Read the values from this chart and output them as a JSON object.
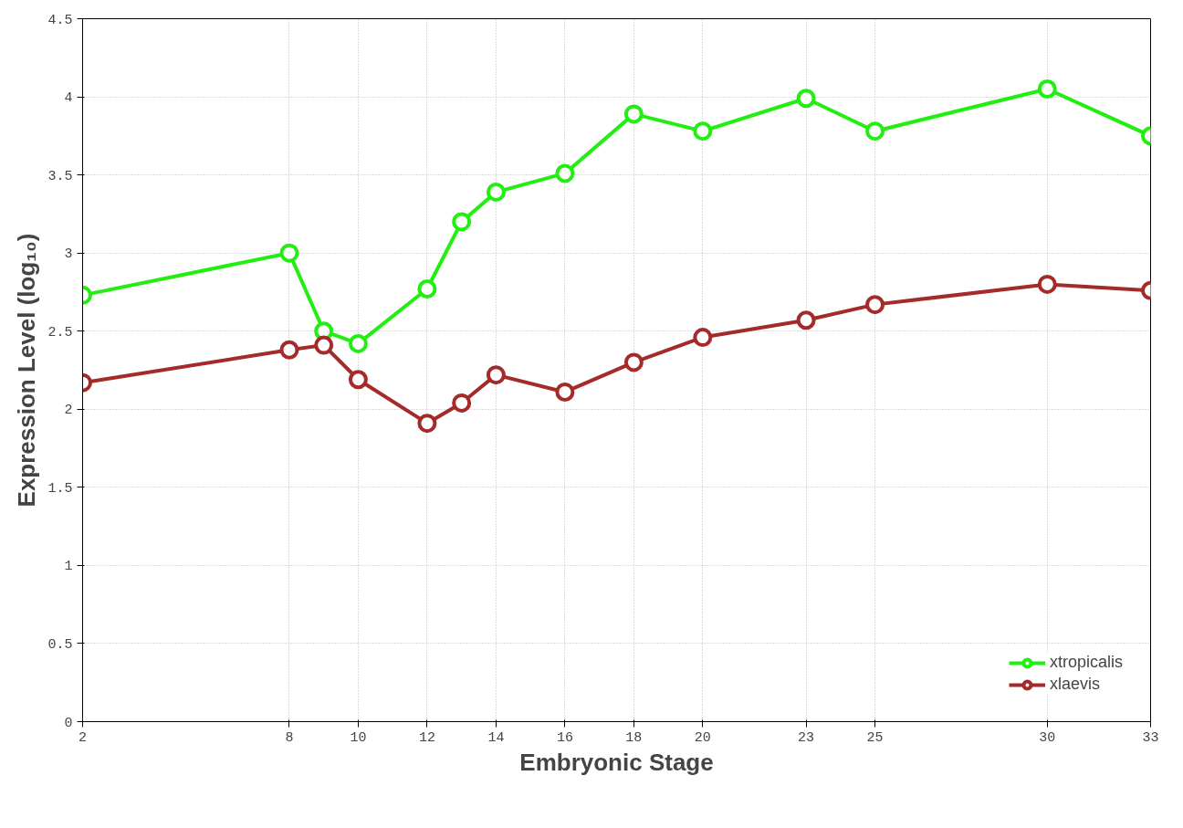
{
  "chart_data": {
    "type": "line",
    "xlabel": "Embryonic Stage",
    "ylabel": "Expression Level (log₁₀)",
    "x": [
      2,
      8,
      9,
      10,
      12,
      13,
      14,
      16,
      18,
      20,
      23,
      25,
      30,
      33
    ],
    "series": [
      {
        "name": "xtropicalis",
        "color": "#22ee11",
        "values": [
          2.73,
          3.0,
          2.5,
          2.42,
          2.77,
          3.2,
          3.39,
          3.51,
          3.89,
          3.78,
          3.99,
          3.78,
          4.05,
          3.75
        ]
      },
      {
        "name": "xlaevis",
        "color": "#a52a2a",
        "values": [
          2.17,
          2.38,
          2.41,
          2.19,
          1.91,
          2.04,
          2.22,
          2.11,
          2.3,
          2.46,
          2.57,
          2.67,
          2.8,
          2.76
        ]
      }
    ],
    "xlim": [
      2,
      33
    ],
    "xticks": [
      2,
      8,
      10,
      12,
      14,
      16,
      18,
      20,
      23,
      25,
      30,
      33
    ],
    "ylim": [
      0,
      4.5
    ],
    "yticks": [
      0,
      0.5,
      1,
      1.5,
      2,
      2.5,
      3,
      3.5,
      4,
      4.5
    ],
    "grid": true,
    "legend": "bottom right",
    "marker": "circle",
    "line_style": "solid"
  }
}
